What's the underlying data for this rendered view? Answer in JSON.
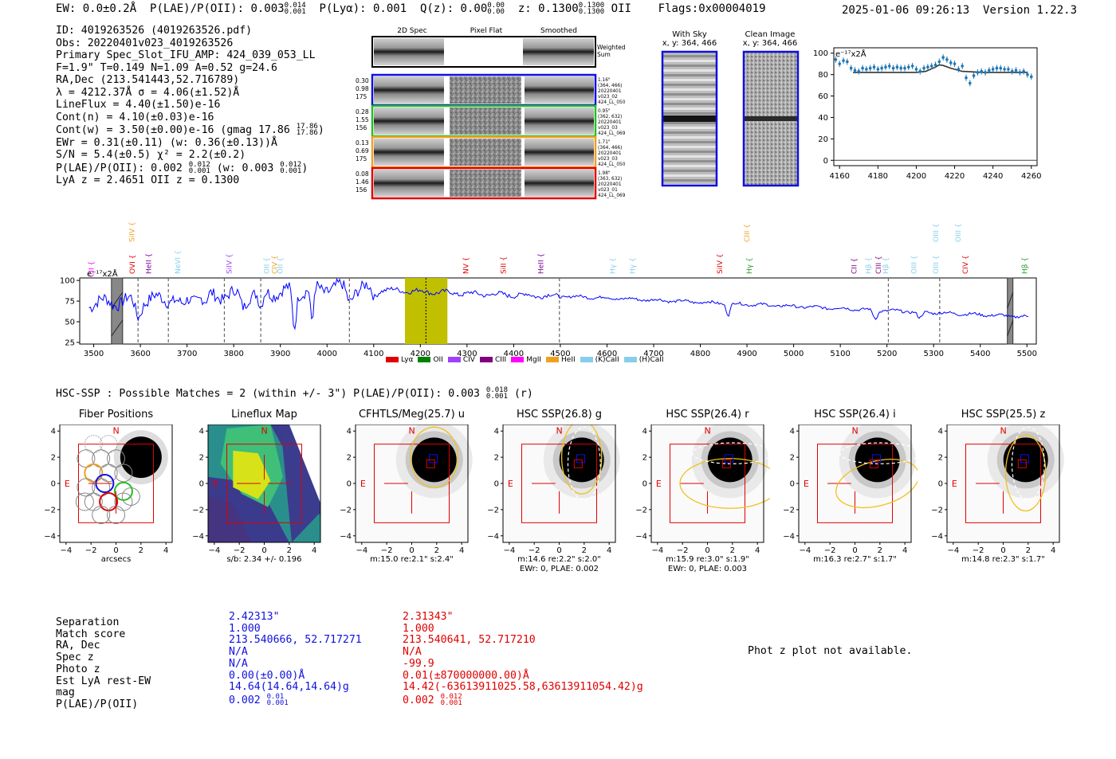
{
  "header": {
    "ew": "EW: 0.0±0.2Å",
    "plae_oii": "P(LAE)/P(OII): 0.003",
    "plae_oii_hi": "0.014",
    "plae_oii_lo": "0.001",
    "plya": "P(Lyα): 0.001",
    "qz": "Q(z): 0.00",
    "qz_hi": "0.00",
    "qz_lo": "0.00",
    "z": "z: 0.1300",
    "z_hi": "0.1300",
    "z_lo": "0.1300",
    "z_line": "OII",
    "flags": "Flags:0x00004019",
    "datetime": "2025-01-06 09:26:13",
    "version": "Version 1.22.3"
  },
  "info": {
    "id": "ID: 4019263526 (4019263526.pdf)",
    "obs": "Obs: 20220401v023_4019263526",
    "primary": "Primary Spec_Slot_IFU_AMP: 424_039_053_LL",
    "params": "F=1.9\"  T=0.149  N=1.09  A=0.52  g=24.6",
    "radec": "RA,Dec (213.541443,52.716789)",
    "lambda": "λ = 4212.37Å  σ = 4.06(±1.52)Å",
    "lineflux": "LineFlux = 4.40(±1.50)e-16",
    "contn": "Cont(n) = 4.10(±0.03)e-16",
    "contw": "Cont(w) = 3.50(±0.00)e-16 (gmag 17.86",
    "contw_hi": "17.86",
    "contw_lo": "17.86",
    "ewr": "EWr = 0.31(±0.11) (w: 0.36(±0.13))Å",
    "sn": "S/N = 5.4(±0.5)  χ² = 2.2(±0.2)",
    "plae": "P(LAE)/P(OII): 0.002",
    "plae_hi": "0.012",
    "plae_lo": "0.001",
    "plae_w": "(w: 0.003",
    "plae_w_hi": "0.012",
    "plae_w_lo": "0.001",
    "lya_z": "LyA z = 2.4651  OII z = 0.1300"
  },
  "cutouts": {
    "col_titles": [
      "2D Spec",
      "Pixel Flat",
      "Smoothed"
    ],
    "weighted_sum": "Weighted Sum",
    "rows": [
      {
        "left": [
          "0.30",
          "0.98",
          "175"
        ],
        "right": [
          "1.16\"",
          "(364, 466)",
          "20220401",
          "v023_02",
          "424_LL_050"
        ],
        "color": "#1010e0"
      },
      {
        "left": [
          "0.28",
          "1.55",
          "156"
        ],
        "right": [
          "0.95\"",
          "(362, 632)",
          "20220401",
          "v023_03",
          "424_LL_069"
        ],
        "color": "#22c022"
      },
      {
        "left": [
          "0.13",
          "0.69",
          "175"
        ],
        "right": [
          "1.71\"",
          "(364, 466)",
          "20220401",
          "v023_03",
          "424_LL_050"
        ],
        "color": "#f0a020"
      },
      {
        "left": [
          "0.08",
          "1.46",
          "156"
        ],
        "right": [
          "1.98\"",
          "(363, 632)",
          "20220401",
          "v023_01",
          "424_LL_069"
        ],
        "color": "#e00000"
      }
    ],
    "with_sky": "With Sky",
    "with_sky_xy": "x, y: 364, 466",
    "clean": "Clean Image",
    "clean_xy": "x, y: 364, 466"
  },
  "zoom_chart": {
    "type": "scatter",
    "unit_label": "e⁻¹⁷x2Å",
    "xlim": [
      4157,
      4263
    ],
    "ylim": [
      -5,
      105
    ],
    "xticks": [
      4160,
      4180,
      4200,
      4220,
      4240,
      4260
    ],
    "yticks": [
      0,
      20,
      40,
      60,
      80,
      100
    ],
    "x": [
      4158,
      4160,
      4162,
      4164,
      4166,
      4168,
      4170,
      4172,
      4174,
      4176,
      4178,
      4180,
      4182,
      4184,
      4186,
      4188,
      4190,
      4192,
      4194,
      4196,
      4198,
      4200,
      4202,
      4204,
      4206,
      4208,
      4210,
      4212,
      4214,
      4216,
      4218,
      4220,
      4222,
      4224,
      4226,
      4228,
      4230,
      4232,
      4234,
      4236,
      4238,
      4240,
      4242,
      4244,
      4246,
      4248,
      4250,
      4252,
      4254,
      4256,
      4258,
      4260
    ],
    "y": [
      94,
      90,
      93,
      92,
      86,
      84,
      83,
      86,
      85,
      86,
      87,
      85,
      86,
      87,
      88,
      86,
      87,
      86,
      86,
      87,
      88,
      85,
      83,
      86,
      87,
      88,
      89,
      92,
      96,
      94,
      91,
      90,
      85,
      88,
      77,
      72,
      79,
      82,
      83,
      82,
      84,
      85,
      86,
      86,
      85,
      85,
      83,
      84,
      82,
      83,
      80,
      78
    ],
    "fit_x": [
      4167,
      4190,
      4200,
      4205,
      4210,
      4212,
      4214,
      4218,
      4224,
      4235,
      4258
    ],
    "fit_y": [
      82,
      82,
      82,
      83,
      87,
      89,
      88.5,
      86,
      83,
      82,
      82
    ]
  },
  "spectrum": {
    "type": "line",
    "unit_label": "e⁻¹⁷x2Å",
    "xlim": [
      3470,
      5520
    ],
    "ylim": [
      23,
      103
    ],
    "xticks": [
      3500,
      3600,
      3700,
      3800,
      3900,
      4000,
      4100,
      4200,
      4300,
      4400,
      4500,
      4600,
      4700,
      4800,
      4900,
      5000,
      5100,
      5200,
      5300,
      5400,
      5500
    ],
    "yticks": [
      25,
      50,
      75,
      100
    ],
    "highlight": [
      4167,
      4258
    ],
    "highlight_color": "#c0c000",
    "center": 4212,
    "dashed": [
      3595,
      3660,
      3780,
      3858,
      4048,
      4498,
      5203,
      5313
    ],
    "masked": [
      [
        3538,
        3562
      ],
      [
        5458,
        5470
      ]
    ],
    "lines": [
      {
        "label": "CII",
        "x": 3495,
        "color": "#ff00ff",
        "row": 2
      },
      {
        "label": "SiIV",
        "x": 3582,
        "color": "#f0a020",
        "row": 0
      },
      {
        "label": "OVI",
        "x": 3583,
        "color": "#e00000",
        "row": 1
      },
      {
        "label": "HeII",
        "x": 3618,
        "color": "#8000a0",
        "row": 1
      },
      {
        "label": "NeVI",
        "x": 3680,
        "color": "#87ceeb",
        "row": 1
      },
      {
        "label": "SiIV",
        "x": 3790,
        "color": "#a040ff",
        "row": 1
      },
      {
        "label": "OII",
        "x": 3871,
        "color": "#87ceeb",
        "row": 1
      },
      {
        "label": "CIV",
        "x": 3888,
        "color": "#f0a020",
        "row": 1
      },
      {
        "label": "OII",
        "x": 3900,
        "color": "#87ceeb",
        "row": 1
      },
      {
        "label": "NV",
        "x": 4298,
        "color": "#e00000",
        "row": 1
      },
      {
        "label": "SiII",
        "x": 4378,
        "color": "#e00000",
        "row": 1
      },
      {
        "label": "HeII",
        "x": 4458,
        "color": "#8000a0",
        "row": 1
      },
      {
        "label": "Hγ",
        "x": 4612,
        "color": "#87ceeb",
        "row": 1
      },
      {
        "label": "Hγ",
        "x": 4655,
        "color": "#87ceeb",
        "row": 1
      },
      {
        "label": "SiIV",
        "x": 4842,
        "color": "#e00000",
        "row": 1
      },
      {
        "label": "CIII",
        "x": 4900,
        "color": "#f0a020",
        "row": 0
      },
      {
        "label": "Hγ",
        "x": 4905,
        "color": "#22a022",
        "row": 1
      },
      {
        "label": "CII",
        "x": 5130,
        "color": "#800080",
        "row": 1
      },
      {
        "label": "Hβ",
        "x": 5160,
        "color": "#87ceeb",
        "row": 1
      },
      {
        "label": "CIII",
        "x": 5182,
        "color": "#800080",
        "row": 1
      },
      {
        "label": "Hβ",
        "x": 5197,
        "color": "#87ceeb",
        "row": 1
      },
      {
        "label": "OIII",
        "x": 5258,
        "color": "#87ceeb",
        "row": 1
      },
      {
        "label": "OIII",
        "x": 5305,
        "color": "#87ceeb",
        "row": 1
      },
      {
        "label": "OIII",
        "x": 5305,
        "color": "#87ceeb",
        "row": 0
      },
      {
        "label": "OIII",
        "x": 5353,
        "color": "#87ceeb",
        "row": 0
      },
      {
        "label": "CIV",
        "x": 5368,
        "color": "#e00000",
        "row": 1
      },
      {
        "label": "Hβ",
        "x": 5495,
        "color": "#22a022",
        "row": 1
      }
    ],
    "legend": [
      {
        "label": "Lyα",
        "color": "#e00000"
      },
      {
        "label": "OII",
        "color": "#008000"
      },
      {
        "label": "CIV",
        "color": "#a040ff"
      },
      {
        "label": "CIII",
        "color": "#800080"
      },
      {
        "label": "MgII",
        "color": "#ff00ff"
      },
      {
        "label": "HeII",
        "color": "#f0a020"
      },
      {
        "label": "(K)CaII",
        "color": "#87ceeb"
      },
      {
        "label": "(H)CaII",
        "color": "#87ceeb"
      }
    ]
  },
  "hsc": {
    "title": "HSC-SSP : Possible Matches = 2 (within +/- 3\")  P(LAE)/P(OII): 0.003",
    "title_hi": "0.018",
    "title_lo": "0.001",
    "title_band": "(r)",
    "panels": [
      {
        "title": "Fiber Positions",
        "cap1": "arcsecs",
        "cap2": ""
      },
      {
        "title": "Lineflux Map",
        "cap1": "s/b: 2.34 +/- 0.196",
        "cap2": ""
      },
      {
        "title": "CFHTLS/Meg(25.7) u",
        "cap1": "m:15.0  re:2.1\"  s:2.4\"",
        "cap2": ""
      },
      {
        "title": "HSC SSP(26.8) g",
        "cap1": "m:14.6  re:2.2\"  s:2.0\"",
        "cap2": "EWr: 0, PLAE: 0.002"
      },
      {
        "title": "HSC SSP(26.4) r",
        "cap1": "m:15.9  re:3.0\"  s:1.9\"",
        "cap2": "EWr: 0, PLAE: 0.003"
      },
      {
        "title": "HSC SSP(26.4) i",
        "cap1": "m:16.3  re:2.7\"  s:1.7\"",
        "cap2": ""
      },
      {
        "title": "HSC SSP(25.5) z",
        "cap1": "m:14.8  re:2.3\"  s:1.7\"",
        "cap2": ""
      }
    ],
    "ticks": [
      "−4",
      "−2",
      "0",
      "2",
      "4"
    ],
    "yticks": [
      "4",
      "2",
      "0",
      "−2",
      "−4"
    ],
    "n_label": "N",
    "e_label": "E"
  },
  "matches": {
    "labels": [
      "Separation",
      "Match score",
      "RA, Dec",
      "Spec z",
      "Photo z",
      "Est LyA rest-EW",
      "mag",
      "P(LAE)/P(OII)"
    ],
    "m1": [
      "2.42313\"",
      "1.000",
      "213.540666, 52.717271",
      "N/A",
      "N/A",
      "0.00(±0.00)Å",
      "14.64(14.64,14.64)g",
      "0.002"
    ],
    "m1_plae_hi": "0.01",
    "m1_plae_lo": "0.001",
    "m2": [
      "2.31343\"",
      "1.000",
      "213.540641, 52.717210",
      "N/A",
      "-99.9",
      "0.01(±870000000.00)Å",
      "14.42(-63613911025.58,63613911054.42)g",
      "0.002"
    ],
    "m2_plae_hi": "0.012",
    "m2_plae_lo": "0.001",
    "photz_msg": "Phot z plot not available."
  }
}
